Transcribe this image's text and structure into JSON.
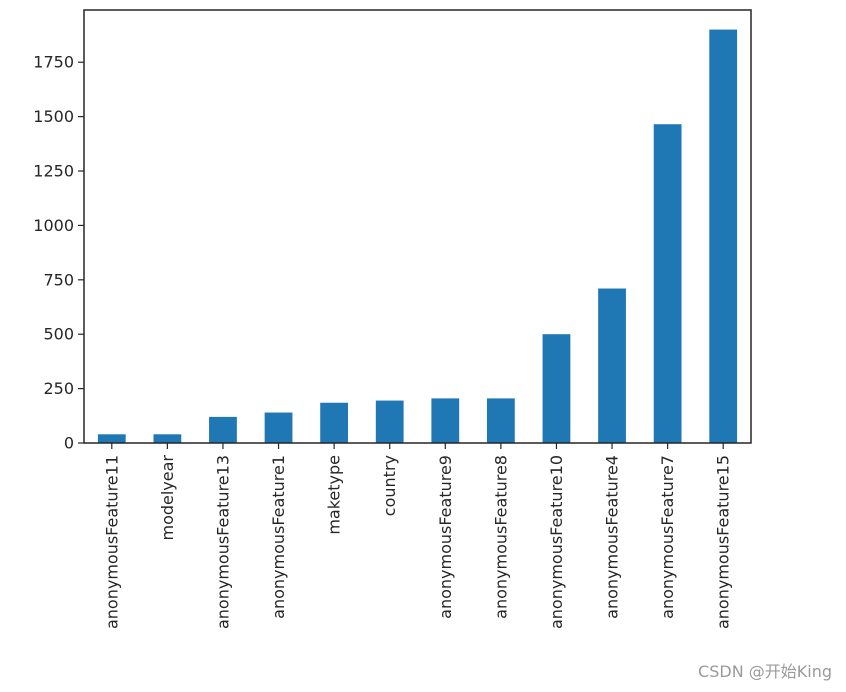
{
  "chart_data": {
    "type": "bar",
    "categories": [
      "anonymousFeature11",
      "modelyear",
      "anonymousFeature13",
      "anonymousFeature1",
      "maketype",
      "country",
      "anonymousFeature9",
      "anonymousFeature8",
      "anonymousFeature10",
      "anonymousFeature4",
      "anonymousFeature7",
      "anonymousFeature15"
    ],
    "values": [
      40,
      40,
      120,
      140,
      185,
      195,
      205,
      205,
      500,
      710,
      1465,
      1900
    ],
    "ylim": [
      0,
      1990
    ],
    "yticks": [
      0,
      250,
      500,
      750,
      1000,
      1250,
      1500,
      1750
    ],
    "bar_color": "#1f77b4",
    "grid": false,
    "legend": "none"
  },
  "watermark": "CSDN @开始King"
}
